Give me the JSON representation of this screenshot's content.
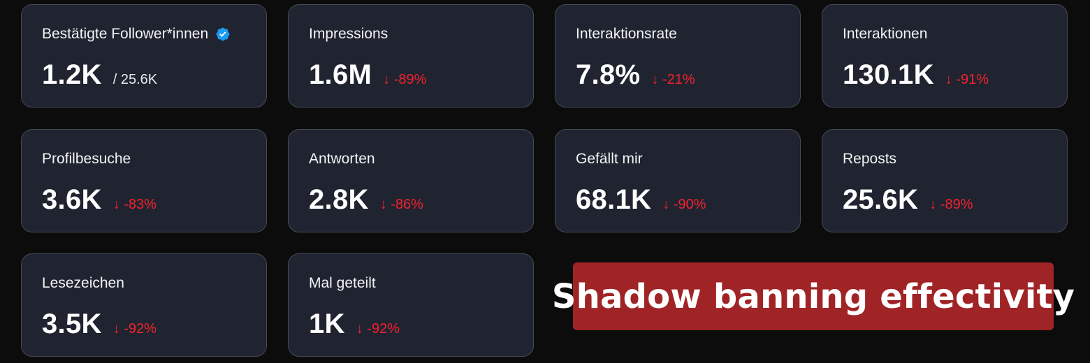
{
  "metrics": [
    {
      "label": "Bestätigte Follower*innen",
      "value": "1.2K",
      "total": "/ 25.6K",
      "verified": true
    },
    {
      "label": "Impressions",
      "value": "1.6M",
      "delta": "↓ -89%"
    },
    {
      "label": "Interaktionsrate",
      "value": "7.8%",
      "delta": "↓ -21%"
    },
    {
      "label": "Interaktionen",
      "value": "130.1K",
      "delta": "↓ -91%"
    },
    {
      "label": "Profilbesuche",
      "value": "3.6K",
      "delta": "↓ -83%"
    },
    {
      "label": "Antworten",
      "value": "2.8K",
      "delta": "↓ -86%"
    },
    {
      "label": "Gefällt mir",
      "value": "68.1K",
      "delta": "↓ -90%"
    },
    {
      "label": "Reposts",
      "value": "25.6K",
      "delta": "↓ -89%"
    },
    {
      "label": "Lesezeichen",
      "value": "3.5K",
      "delta": "↓ -92%"
    },
    {
      "label": "Mal geteilt",
      "value": "1K",
      "delta": "↓ -92%"
    }
  ],
  "banner": {
    "text": "Shadow banning effectivity"
  },
  "colors": {
    "background": "#0c0c0c",
    "card": "#202430",
    "card_border": "#454a55",
    "negative": "#f4212e",
    "verified": "#1d9bf0",
    "banner": "#a02426"
  },
  "icons": {
    "verified": "verified-badge-icon",
    "delta_arrow": "arrow-down-icon"
  }
}
